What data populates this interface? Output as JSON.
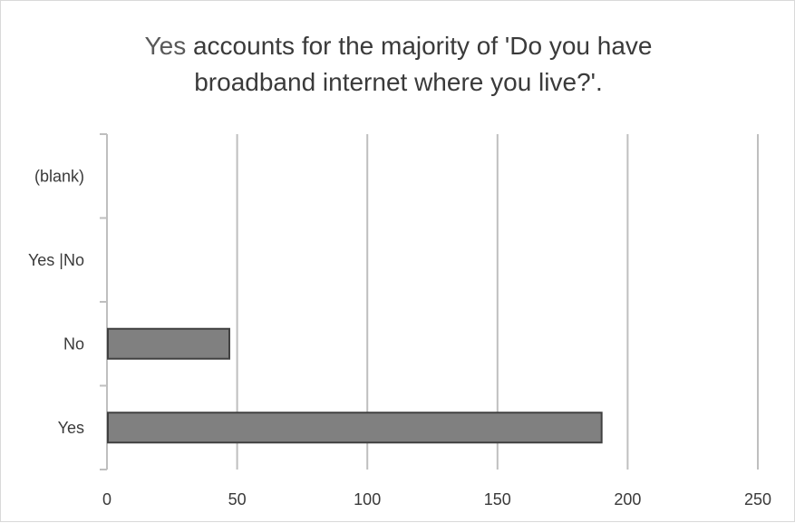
{
  "chart_data": {
    "type": "bar",
    "orientation": "horizontal",
    "title": {
      "highlight": "Yes",
      "rest_line1": " accounts for the majority of 'Do you have",
      "line2": "broadband internet where you live?'."
    },
    "categories": [
      "(blank)",
      "Yes |No",
      "No",
      "Yes"
    ],
    "values": [
      0,
      0,
      47,
      190
    ],
    "xlim": [
      0,
      250
    ],
    "x_ticks": [
      0,
      50,
      100,
      150,
      200,
      250
    ],
    "grid": true,
    "bar_color": "#808080",
    "bar_edge_color": "#404040",
    "grid_color": "#bfbfbf"
  }
}
